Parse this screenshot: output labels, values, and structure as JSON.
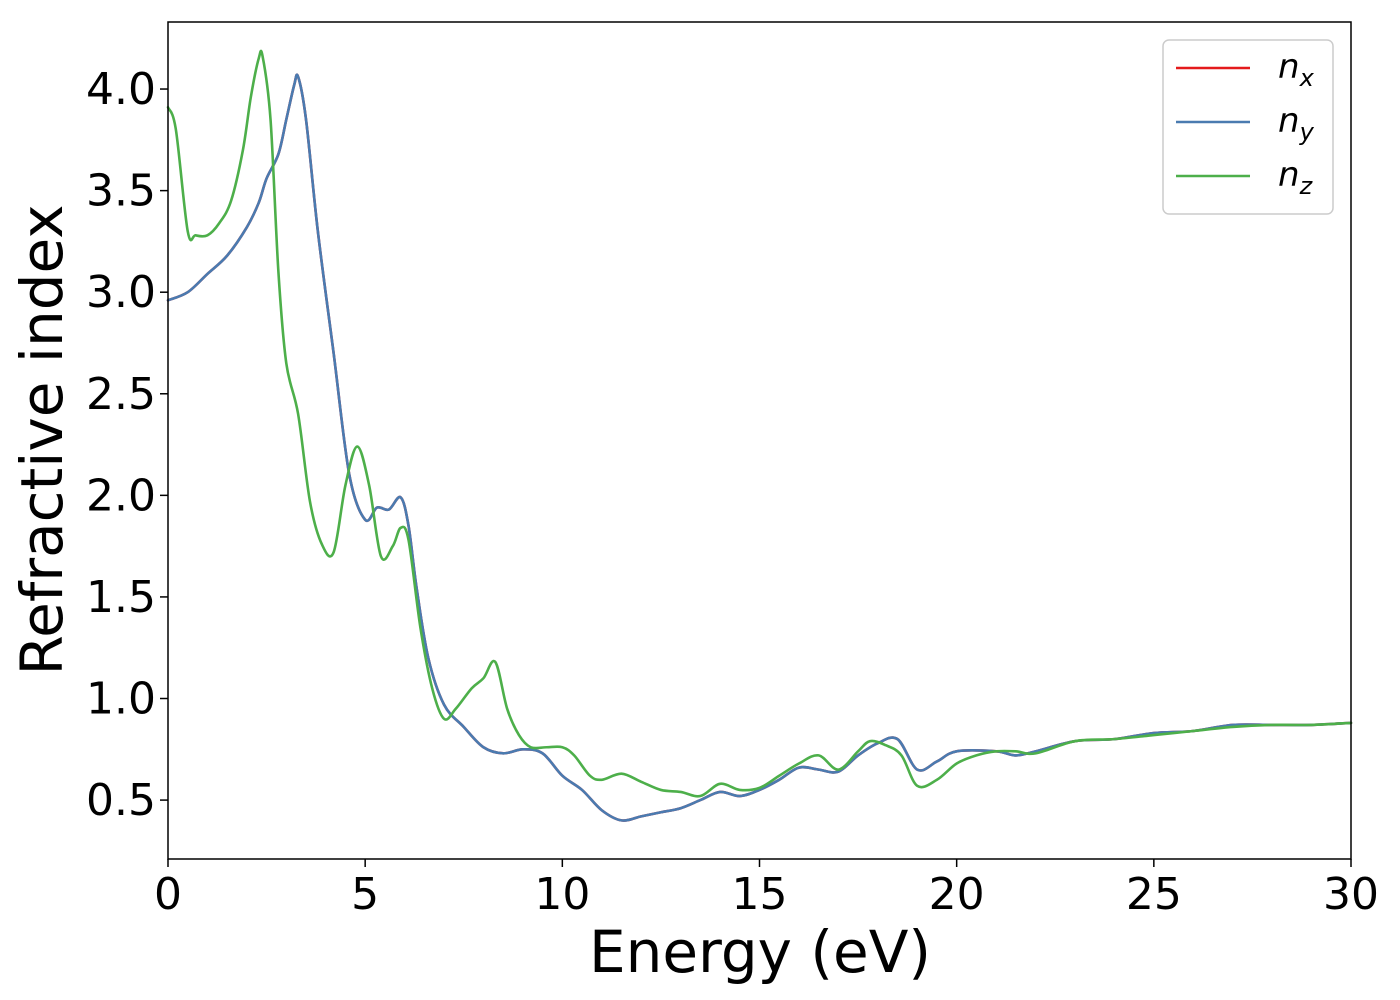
{
  "chart_data": {
    "type": "line",
    "title": "",
    "xlabel": "Energy (eV)",
    "ylabel": "Refractive index",
    "xlim": [
      0,
      30
    ],
    "ylim": [
      0.21,
      4.33
    ],
    "xticks": [
      0,
      5,
      10,
      15,
      20,
      25,
      30
    ],
    "xtick_labels": [
      "0",
      "5",
      "10",
      "15",
      "20",
      "25",
      "30"
    ],
    "yticks": [
      0.5,
      1.0,
      1.5,
      2.0,
      2.5,
      3.0,
      3.5,
      4.0
    ],
    "ytick_labels": [
      "0.5",
      "1.0",
      "1.5",
      "2.0",
      "2.5",
      "3.0",
      "3.5",
      "4.0"
    ],
    "grid": false,
    "legend_position": "top-right",
    "series": [
      {
        "name": "n_x",
        "label_main": "n",
        "label_sub": "x",
        "color": "#e41a1c",
        "x": [
          0,
          0.5,
          1,
          1.5,
          2,
          2.3,
          2.5,
          2.8,
          3.0,
          3.2,
          3.3,
          3.5,
          3.8,
          4.2,
          4.6,
          5.0,
          5.3,
          5.6,
          5.9,
          6.1,
          6.3,
          6.6,
          7.0,
          7.5,
          8.0,
          8.5,
          9.0,
          9.5,
          10.0,
          10.5,
          11.0,
          11.5,
          12.0,
          12.5,
          13.0,
          13.5,
          14.0,
          14.5,
          15.0,
          15.5,
          16.0,
          16.5,
          17.0,
          17.5,
          18.0,
          18.5,
          19.0,
          19.5,
          20.0,
          21.0,
          21.5,
          22.0,
          23.0,
          24.0,
          25.0,
          26.0,
          27.0,
          28.0,
          29.0,
          30.0
        ],
        "y": [
          2.96,
          3.0,
          3.09,
          3.18,
          3.32,
          3.44,
          3.56,
          3.68,
          3.85,
          4.02,
          4.06,
          3.85,
          3.3,
          2.7,
          2.1,
          1.88,
          1.94,
          1.93,
          1.99,
          1.85,
          1.55,
          1.2,
          0.97,
          0.86,
          0.76,
          0.73,
          0.75,
          0.73,
          0.62,
          0.55,
          0.45,
          0.4,
          0.42,
          0.44,
          0.46,
          0.5,
          0.54,
          0.52,
          0.55,
          0.6,
          0.66,
          0.65,
          0.64,
          0.72,
          0.78,
          0.8,
          0.65,
          0.69,
          0.74,
          0.74,
          0.72,
          0.74,
          0.79,
          0.8,
          0.83,
          0.84,
          0.87,
          0.87,
          0.87,
          0.88
        ]
      },
      {
        "name": "n_y",
        "label_main": "n",
        "label_sub": "y",
        "color": "#4a7bb0",
        "x": [
          0,
          0.5,
          1,
          1.5,
          2,
          2.3,
          2.5,
          2.8,
          3.0,
          3.2,
          3.3,
          3.5,
          3.8,
          4.2,
          4.6,
          5.0,
          5.3,
          5.6,
          5.9,
          6.1,
          6.3,
          6.6,
          7.0,
          7.5,
          8.0,
          8.5,
          9.0,
          9.5,
          10.0,
          10.5,
          11.0,
          11.5,
          12.0,
          12.5,
          13.0,
          13.5,
          14.0,
          14.5,
          15.0,
          15.5,
          16.0,
          16.5,
          17.0,
          17.5,
          18.0,
          18.5,
          19.0,
          19.5,
          20.0,
          21.0,
          21.5,
          22.0,
          23.0,
          24.0,
          25.0,
          26.0,
          27.0,
          28.0,
          29.0,
          30.0
        ],
        "y": [
          2.96,
          3.0,
          3.09,
          3.18,
          3.32,
          3.44,
          3.56,
          3.68,
          3.85,
          4.02,
          4.06,
          3.85,
          3.3,
          2.7,
          2.1,
          1.88,
          1.94,
          1.93,
          1.99,
          1.85,
          1.55,
          1.2,
          0.97,
          0.86,
          0.76,
          0.73,
          0.75,
          0.73,
          0.62,
          0.55,
          0.45,
          0.4,
          0.42,
          0.44,
          0.46,
          0.5,
          0.54,
          0.52,
          0.55,
          0.6,
          0.66,
          0.65,
          0.64,
          0.72,
          0.78,
          0.8,
          0.65,
          0.69,
          0.74,
          0.74,
          0.72,
          0.74,
          0.79,
          0.8,
          0.83,
          0.84,
          0.87,
          0.87,
          0.87,
          0.88
        ]
      },
      {
        "name": "n_z",
        "label_main": "n",
        "label_sub": "z",
        "color": "#4daf4a",
        "x": [
          0,
          0.2,
          0.5,
          0.7,
          1.0,
          1.3,
          1.6,
          1.9,
          2.1,
          2.3,
          2.4,
          2.6,
          2.8,
          3.0,
          3.3,
          3.6,
          3.9,
          4.2,
          4.5,
          4.8,
          5.1,
          5.4,
          5.7,
          5.9,
          6.1,
          6.4,
          6.7,
          7.0,
          7.3,
          7.7,
          8.0,
          8.3,
          8.6,
          8.9,
          9.2,
          9.6,
          10.0,
          10.3,
          10.7,
          11.0,
          11.5,
          12.0,
          12.5,
          13.0,
          13.5,
          14.0,
          14.5,
          15.0,
          15.5,
          16.0,
          16.5,
          17.0,
          17.5,
          17.8,
          18.2,
          18.6,
          19.0,
          19.5,
          20.0,
          20.5,
          21.0,
          21.5,
          22.0,
          23.0,
          24.0,
          25.0,
          26.0,
          27.0,
          28.0,
          29.0,
          30.0
        ],
        "y": [
          3.91,
          3.8,
          3.3,
          3.28,
          3.28,
          3.34,
          3.45,
          3.7,
          3.96,
          4.15,
          4.16,
          3.85,
          3.1,
          2.65,
          2.4,
          1.97,
          1.76,
          1.72,
          2.05,
          2.24,
          2.05,
          1.7,
          1.75,
          1.84,
          1.78,
          1.35,
          1.05,
          0.9,
          0.95,
          1.05,
          1.1,
          1.18,
          0.95,
          0.82,
          0.76,
          0.76,
          0.76,
          0.72,
          0.62,
          0.6,
          0.63,
          0.59,
          0.55,
          0.54,
          0.52,
          0.58,
          0.55,
          0.56,
          0.62,
          0.68,
          0.72,
          0.65,
          0.74,
          0.79,
          0.77,
          0.72,
          0.57,
          0.6,
          0.68,
          0.72,
          0.74,
          0.74,
          0.73,
          0.79,
          0.8,
          0.82,
          0.84,
          0.86,
          0.87,
          0.87,
          0.88
        ]
      }
    ]
  }
}
